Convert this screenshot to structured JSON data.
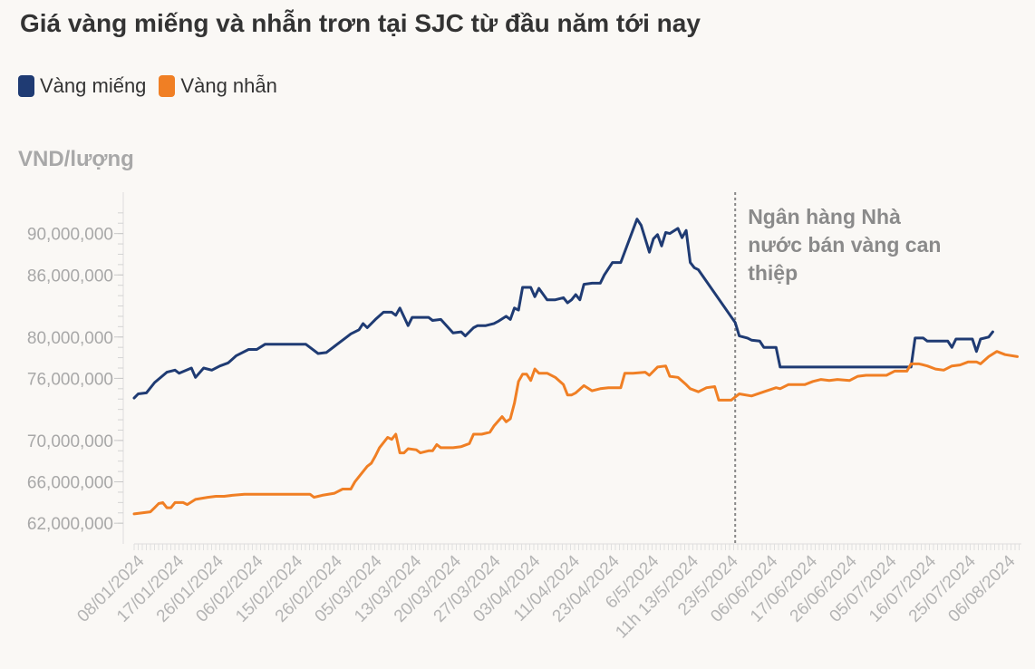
{
  "title": "Giá vàng miếng và nhẫn trơn tại SJC từ đầu năm tới nay",
  "legend": [
    {
      "label": "Vàng miếng",
      "color": "#1f3b73"
    },
    {
      "label": "Vàng nhẫn",
      "color": "#f07f24"
    }
  ],
  "unit_label": "VND/lượng",
  "annotation": {
    "lines": [
      "Ngân hàng Nhà",
      "nước bán vàng can",
      "thiệp"
    ],
    "at_date": "2024-06-03"
  },
  "chart_data": {
    "type": "line",
    "x_start": "2024-01-08",
    "x_end": "2024-08-12",
    "ylim": [
      60000000,
      94000000
    ],
    "y_ticks": [
      62000000,
      66000000,
      70000000,
      76000000,
      80000000,
      86000000,
      90000000
    ],
    "y_tick_labels": [
      "62,000,000",
      "66,000,000",
      "70,000,000",
      "76,000,000",
      "80,000,000",
      "86,000,000",
      "90,000,000"
    ],
    "x_tick_labels": [
      "08/01/2024",
      "17/01/2024",
      "26/01/2024",
      "06/02/2024",
      "15/02/2024",
      "26/02/2024",
      "05/03/2024",
      "13/03/2024",
      "20/03/2024",
      "27/03/2024",
      "03/04/2024",
      "11/04/2024",
      "23/04/2024",
      "6/5/2024",
      "11h 13/5/2024",
      "23/5/2024",
      "06/06/2024",
      "17/06/2024",
      "26/06/2024",
      "05/07/2024",
      "16/07/2024",
      "25/07/2024",
      "06/08/2024"
    ],
    "series": [
      {
        "name": "Vàng miếng",
        "color": "#1f3b73",
        "points": [
          [
            "2024-01-08",
            74100000
          ],
          [
            "2024-01-09",
            74500000
          ],
          [
            "2024-01-11",
            74600000
          ],
          [
            "2024-01-13",
            75600000
          ],
          [
            "2024-01-16",
            76600000
          ],
          [
            "2024-01-18",
            76800000
          ],
          [
            "2024-01-19",
            76500000
          ],
          [
            "2024-01-22",
            77000000
          ],
          [
            "2024-01-23",
            76100000
          ],
          [
            "2024-01-25",
            77000000
          ],
          [
            "2024-01-27",
            76800000
          ],
          [
            "2024-01-29",
            77200000
          ],
          [
            "2024-01-31",
            77500000
          ],
          [
            "2024-02-02",
            78200000
          ],
          [
            "2024-02-05",
            78800000
          ],
          [
            "2024-02-07",
            78800000
          ],
          [
            "2024-02-09",
            79300000
          ],
          [
            "2024-02-12",
            79300000
          ],
          [
            "2024-02-15",
            79300000
          ],
          [
            "2024-02-19",
            79300000
          ],
          [
            "2024-02-20",
            79000000
          ],
          [
            "2024-02-22",
            78400000
          ],
          [
            "2024-02-24",
            78500000
          ],
          [
            "2024-02-26",
            79100000
          ],
          [
            "2024-02-28",
            79700000
          ],
          [
            "2024-03-01",
            80300000
          ],
          [
            "2024-03-03",
            80700000
          ],
          [
            "2024-03-04",
            81300000
          ],
          [
            "2024-03-05",
            80900000
          ],
          [
            "2024-03-07",
            81700000
          ],
          [
            "2024-03-09",
            82400000
          ],
          [
            "2024-03-11",
            82400000
          ],
          [
            "2024-03-12",
            82100000
          ],
          [
            "2024-03-13",
            82800000
          ],
          [
            "2024-03-15",
            81100000
          ],
          [
            "2024-03-16",
            81900000
          ],
          [
            "2024-03-18",
            81900000
          ],
          [
            "2024-03-20",
            81900000
          ],
          [
            "2024-03-21",
            81600000
          ],
          [
            "2024-03-23",
            81700000
          ],
          [
            "2024-03-26",
            80400000
          ],
          [
            "2024-03-28",
            80500000
          ],
          [
            "2024-03-29",
            80100000
          ],
          [
            "2024-03-31",
            80900000
          ],
          [
            "2024-04-01",
            81100000
          ],
          [
            "2024-04-03",
            81100000
          ],
          [
            "2024-04-05",
            81300000
          ],
          [
            "2024-04-06",
            81500000
          ],
          [
            "2024-04-08",
            82000000
          ],
          [
            "2024-04-09",
            81700000
          ],
          [
            "2024-04-10",
            82800000
          ],
          [
            "2024-04-11",
            82600000
          ],
          [
            "2024-04-12",
            84800000
          ],
          [
            "2024-04-14",
            84800000
          ],
          [
            "2024-04-15",
            83900000
          ],
          [
            "2024-04-16",
            84700000
          ],
          [
            "2024-04-18",
            83600000
          ],
          [
            "2024-04-20",
            83600000
          ],
          [
            "2024-04-22",
            83800000
          ],
          [
            "2024-04-23",
            83300000
          ],
          [
            "2024-04-24",
            83600000
          ],
          [
            "2024-04-25",
            84100000
          ],
          [
            "2024-04-26",
            83600000
          ],
          [
            "2024-04-27",
            85100000
          ],
          [
            "2024-04-29",
            85200000
          ],
          [
            "2024-05-01",
            85200000
          ],
          [
            "2024-05-02",
            86000000
          ],
          [
            "2024-05-04",
            87200000
          ],
          [
            "2024-05-06",
            87200000
          ],
          [
            "2024-05-08",
            89300000
          ],
          [
            "2024-05-10",
            91400000
          ],
          [
            "2024-05-11",
            90800000
          ],
          [
            "2024-05-13",
            88200000
          ],
          [
            "2024-05-14",
            89500000
          ],
          [
            "2024-05-15",
            89900000
          ],
          [
            "2024-05-16",
            88800000
          ],
          [
            "2024-05-17",
            90100000
          ],
          [
            "2024-05-18",
            90000000
          ],
          [
            "2024-05-20",
            90500000
          ],
          [
            "2024-05-21",
            89600000
          ],
          [
            "2024-05-22",
            90300000
          ],
          [
            "2024-05-23",
            87200000
          ],
          [
            "2024-05-24",
            86700000
          ],
          [
            "2024-05-25",
            86500000
          ],
          [
            "2024-06-03",
            81400000
          ],
          [
            "2024-06-04",
            80100000
          ],
          [
            "2024-06-06",
            79900000
          ],
          [
            "2024-06-07",
            79700000
          ],
          [
            "2024-06-09",
            79600000
          ],
          [
            "2024-06-10",
            79000000
          ],
          [
            "2024-06-13",
            79000000
          ],
          [
            "2024-06-14",
            77100000
          ],
          [
            "2024-07-16",
            77100000
          ],
          [
            "2024-07-17",
            79900000
          ],
          [
            "2024-07-19",
            79900000
          ],
          [
            "2024-07-20",
            79600000
          ],
          [
            "2024-07-25",
            79600000
          ],
          [
            "2024-07-26",
            79000000
          ],
          [
            "2024-07-27",
            79800000
          ],
          [
            "2024-07-31",
            79800000
          ],
          [
            "2024-08-01",
            78600000
          ],
          [
            "2024-08-02",
            79800000
          ],
          [
            "2024-08-04",
            80000000
          ],
          [
            "2024-08-05",
            80500000
          ]
        ]
      },
      {
        "name": "Vàng nhẫn",
        "color": "#f07f24",
        "points": [
          [
            "2024-01-08",
            62900000
          ],
          [
            "2024-01-10",
            63000000
          ],
          [
            "2024-01-12",
            63100000
          ],
          [
            "2024-01-13",
            63500000
          ],
          [
            "2024-01-14",
            63900000
          ],
          [
            "2024-01-15",
            64000000
          ],
          [
            "2024-01-16",
            63500000
          ],
          [
            "2024-01-17",
            63500000
          ],
          [
            "2024-01-18",
            64000000
          ],
          [
            "2024-01-20",
            64000000
          ],
          [
            "2024-01-21",
            63800000
          ],
          [
            "2024-01-23",
            64300000
          ],
          [
            "2024-01-26",
            64500000
          ],
          [
            "2024-01-28",
            64600000
          ],
          [
            "2024-01-30",
            64600000
          ],
          [
            "2024-02-01",
            64700000
          ],
          [
            "2024-02-04",
            64800000
          ],
          [
            "2024-02-06",
            64800000
          ],
          [
            "2024-02-08",
            64800000
          ],
          [
            "2024-02-12",
            64800000
          ],
          [
            "2024-02-16",
            64800000
          ],
          [
            "2024-02-20",
            64800000
          ],
          [
            "2024-02-21",
            64500000
          ],
          [
            "2024-02-22",
            64600000
          ],
          [
            "2024-02-23",
            64700000
          ],
          [
            "2024-02-26",
            64900000
          ],
          [
            "2024-02-28",
            65300000
          ],
          [
            "2024-03-01",
            65300000
          ],
          [
            "2024-03-02",
            66000000
          ],
          [
            "2024-03-03",
            66500000
          ],
          [
            "2024-03-05",
            67500000
          ],
          [
            "2024-03-06",
            67800000
          ],
          [
            "2024-03-07",
            68500000
          ],
          [
            "2024-03-08",
            69300000
          ],
          [
            "2024-03-10",
            70300000
          ],
          [
            "2024-03-11",
            70100000
          ],
          [
            "2024-03-12",
            70600000
          ],
          [
            "2024-03-13",
            68800000
          ],
          [
            "2024-03-14",
            68800000
          ],
          [
            "2024-03-15",
            69200000
          ],
          [
            "2024-03-17",
            69100000
          ],
          [
            "2024-03-18",
            68800000
          ],
          [
            "2024-03-20",
            69000000
          ],
          [
            "2024-03-21",
            69000000
          ],
          [
            "2024-03-22",
            69600000
          ],
          [
            "2024-03-23",
            69300000
          ],
          [
            "2024-03-26",
            69300000
          ],
          [
            "2024-03-28",
            69400000
          ],
          [
            "2024-03-30",
            69700000
          ],
          [
            "2024-03-31",
            70600000
          ],
          [
            "2024-04-02",
            70600000
          ],
          [
            "2024-04-04",
            70800000
          ],
          [
            "2024-04-05",
            71400000
          ],
          [
            "2024-04-07",
            72300000
          ],
          [
            "2024-04-08",
            71800000
          ],
          [
            "2024-04-09",
            72100000
          ],
          [
            "2024-04-10",
            73600000
          ],
          [
            "2024-04-11",
            75700000
          ],
          [
            "2024-04-12",
            76400000
          ],
          [
            "2024-04-13",
            76400000
          ],
          [
            "2024-04-14",
            75800000
          ],
          [
            "2024-04-15",
            76900000
          ],
          [
            "2024-04-16",
            76500000
          ],
          [
            "2024-04-18",
            76500000
          ],
          [
            "2024-04-20",
            76100000
          ],
          [
            "2024-04-22",
            75400000
          ],
          [
            "2024-04-23",
            74400000
          ],
          [
            "2024-04-24",
            74400000
          ],
          [
            "2024-04-25",
            74600000
          ],
          [
            "2024-04-27",
            75300000
          ],
          [
            "2024-04-29",
            74800000
          ],
          [
            "2024-05-01",
            75000000
          ],
          [
            "2024-05-03",
            75100000
          ],
          [
            "2024-05-06",
            75100000
          ],
          [
            "2024-05-07",
            76500000
          ],
          [
            "2024-05-09",
            76500000
          ],
          [
            "2024-05-12",
            76600000
          ],
          [
            "2024-05-13",
            76300000
          ],
          [
            "2024-05-15",
            77100000
          ],
          [
            "2024-05-17",
            77200000
          ],
          [
            "2024-05-18",
            76200000
          ],
          [
            "2024-05-20",
            76100000
          ],
          [
            "2024-05-22",
            75400000
          ],
          [
            "2024-05-23",
            75000000
          ],
          [
            "2024-05-25",
            74700000
          ],
          [
            "2024-05-27",
            75100000
          ],
          [
            "2024-05-29",
            75200000
          ],
          [
            "2024-05-30",
            73900000
          ],
          [
            "2024-06-02",
            73900000
          ],
          [
            "2024-06-04",
            74500000
          ],
          [
            "2024-06-07",
            74300000
          ],
          [
            "2024-06-10",
            74700000
          ],
          [
            "2024-06-13",
            75100000
          ],
          [
            "2024-06-14",
            75000000
          ],
          [
            "2024-06-16",
            75400000
          ],
          [
            "2024-06-18",
            75400000
          ],
          [
            "2024-06-20",
            75400000
          ],
          [
            "2024-06-22",
            75700000
          ],
          [
            "2024-06-24",
            75900000
          ],
          [
            "2024-06-26",
            75800000
          ],
          [
            "2024-06-28",
            75900000
          ],
          [
            "2024-07-01",
            75800000
          ],
          [
            "2024-07-03",
            76200000
          ],
          [
            "2024-07-05",
            76300000
          ],
          [
            "2024-07-08",
            76300000
          ],
          [
            "2024-07-10",
            76300000
          ],
          [
            "2024-07-12",
            76700000
          ],
          [
            "2024-07-15",
            76700000
          ],
          [
            "2024-07-16",
            77400000
          ],
          [
            "2024-07-18",
            77400000
          ],
          [
            "2024-07-20",
            77200000
          ],
          [
            "2024-07-22",
            76900000
          ],
          [
            "2024-07-24",
            76800000
          ],
          [
            "2024-07-26",
            77200000
          ],
          [
            "2024-07-28",
            77300000
          ],
          [
            "2024-07-30",
            77600000
          ],
          [
            "2024-08-01",
            77600000
          ],
          [
            "2024-08-02",
            77400000
          ],
          [
            "2024-08-04",
            78100000
          ],
          [
            "2024-08-06",
            78600000
          ],
          [
            "2024-08-08",
            78300000
          ],
          [
            "2024-08-11",
            78100000
          ]
        ]
      }
    ]
  }
}
